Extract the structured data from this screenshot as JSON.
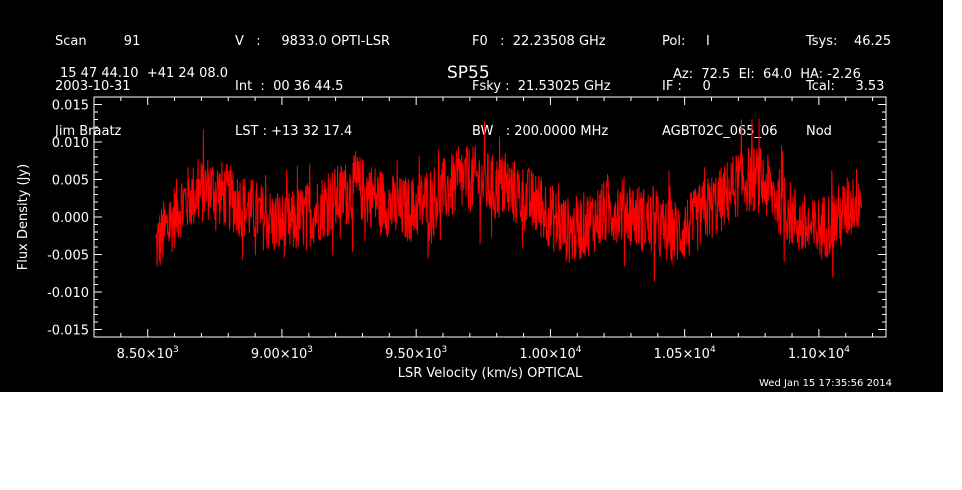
{
  "header": {
    "col1": [
      "Scan         91",
      "2003-10-31",
      "Jim Braatz"
    ],
    "col2": [
      "V   :     9833.0 OPTI-LSR",
      "Int  :  00 36 44.5",
      "LST : +13 32 17.4"
    ],
    "col3": [
      "F0   :  22.23508 GHz",
      "Fsky :  21.53025 GHz",
      "BW   : 200.0000 MHz"
    ],
    "col4": [
      "Pol:     I",
      "IF :     0",
      "AGBT02C_065_06"
    ],
    "col5": [
      "Tsys:    46.25",
      "Tcal:     3.53",
      "Nod"
    ],
    "coords": "15 47 44.10  +41 24 08.0",
    "source": "SP55",
    "pointing": "Az:  72.5  El:  64.0  HA: -2.26",
    "timestamp": "Wed Jan 15 17:35:56 2014"
  },
  "chart_data": {
    "type": "line",
    "xlabel": "LSR Velocity (km/s) OPTICAL",
    "ylabel": "Flux Density (Jy)",
    "xlim": [
      8300,
      11250
    ],
    "ylim": [
      -0.016,
      0.016
    ],
    "x_ticks": [
      8500,
      9000,
      9500,
      10000,
      10500,
      11000
    ],
    "x_tick_labels": [
      {
        "mant": "8.50",
        "exp": "3"
      },
      {
        "mant": "9.00",
        "exp": "3"
      },
      {
        "mant": "9.50",
        "exp": "3"
      },
      {
        "mant": "1.00",
        "exp": "4"
      },
      {
        "mant": "1.05",
        "exp": "4"
      },
      {
        "mant": "1.10",
        "exp": "4"
      }
    ],
    "y_ticks": [
      -0.015,
      -0.01,
      -0.005,
      0.0,
      0.005,
      0.01,
      0.015
    ],
    "y_tick_labels": [
      "-0.015",
      "-0.010",
      "-0.005",
      "0.000",
      "0.005",
      "0.010",
      "0.015"
    ],
    "series": [
      {
        "color": "#ff0000",
        "x": [
          8530,
          8580,
          8630,
          8680,
          8730,
          8780,
          8830,
          8880,
          8930,
          8980,
          9030,
          9080,
          9130,
          9180,
          9230,
          9280,
          9330,
          9380,
          9430,
          9480,
          9530,
          9580,
          9630,
          9680,
          9730,
          9780,
          9830,
          9880,
          9930,
          9980,
          10030,
          10080,
          10130,
          10180,
          10230,
          10280,
          10330,
          10380,
          10430,
          10480,
          10530,
          10580,
          10630,
          10680,
          10730,
          10780,
          10830,
          10880,
          10930,
          10980,
          11030,
          11080,
          11130,
          11160
        ],
        "y": [
          -0.004,
          -0.001,
          0.002,
          0.003,
          0.004,
          0.003,
          0.002,
          0.001,
          0.0,
          -0.001,
          -0.001,
          0.0,
          0.001,
          0.002,
          0.003,
          0.004,
          0.003,
          0.002,
          0.001,
          0.001,
          0.002,
          0.003,
          0.004,
          0.005,
          0.005,
          0.004,
          0.004,
          0.003,
          0.002,
          0.001,
          -0.001,
          -0.002,
          -0.001,
          0.0,
          0.001,
          0.001,
          0.0,
          -0.001,
          -0.002,
          -0.002,
          -0.001,
          0.001,
          0.002,
          0.004,
          0.005,
          0.005,
          0.003,
          0.001,
          -0.001,
          -0.002,
          -0.001,
          0.0,
          0.002,
          0.003
        ]
      }
    ],
    "noise_amplitude": 0.0045
  }
}
